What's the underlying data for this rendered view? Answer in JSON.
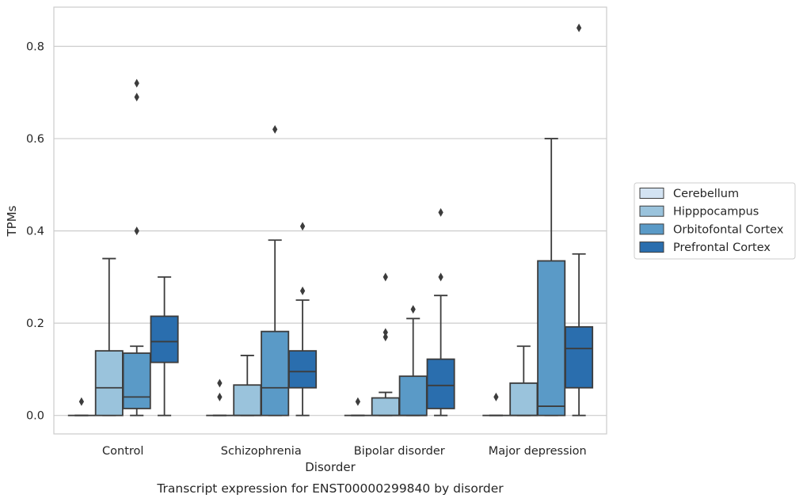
{
  "chart_data": {
    "type": "box",
    "title": "",
    "caption": "Transcript expression for ENST00000299840 by disorder",
    "xlabel": "Disorder",
    "ylabel": "TPMs",
    "ylim": [
      -0.04,
      0.885
    ],
    "yticks": [
      0.0,
      0.2,
      0.4,
      0.6,
      0.8
    ],
    "ytick_labels": [
      "0.0",
      "0.2",
      "0.4",
      "0.6",
      "0.8"
    ],
    "grid": "horizontal",
    "legend_position": "right",
    "categories": [
      "Control",
      "Schizophrenia",
      "Bipolar disorder",
      "Major depression"
    ],
    "series": [
      {
        "name": "Cerebellum",
        "color": "#d3e3f2",
        "boxes": [
          {
            "whislo": 0,
            "q1": 0,
            "med": 0,
            "q3": 0,
            "whishi": 0,
            "fliers": [
              0.03
            ]
          },
          {
            "whislo": 0,
            "q1": 0,
            "med": 0,
            "q3": 0,
            "whishi": 0,
            "fliers": [
              0.04,
              0.07
            ]
          },
          {
            "whislo": 0,
            "q1": 0,
            "med": 0,
            "q3": 0,
            "whishi": 0,
            "fliers": [
              0.03
            ]
          },
          {
            "whislo": 0,
            "q1": 0,
            "med": 0,
            "q3": 0,
            "whishi": 0,
            "fliers": [
              0.04
            ]
          }
        ]
      },
      {
        "name": "Hipppocampus",
        "color": "#9ac3dc",
        "boxes": [
          {
            "whislo": 0,
            "q1": 0,
            "med": 0.06,
            "q3": 0.14,
            "whishi": 0.34,
            "fliers": []
          },
          {
            "whislo": 0,
            "q1": 0,
            "med": 0,
            "q3": 0.066,
            "whishi": 0.13,
            "fliers": []
          },
          {
            "whislo": 0,
            "q1": 0,
            "med": 0,
            "q3": 0.038,
            "whishi": 0.05,
            "fliers": [
              0.17,
              0.18,
              0.3
            ]
          },
          {
            "whislo": 0,
            "q1": 0,
            "med": 0,
            "q3": 0.07,
            "whishi": 0.15,
            "fliers": []
          }
        ]
      },
      {
        "name": "Orbitofontal Cortex",
        "color": "#5a9ac7",
        "boxes": [
          {
            "whislo": 0,
            "q1": 0.015,
            "med": 0.04,
            "q3": 0.135,
            "whishi": 0.15,
            "fliers": [
              0.4,
              0.69,
              0.72
            ]
          },
          {
            "whislo": 0,
            "q1": 0,
            "med": 0.06,
            "q3": 0.182,
            "whishi": 0.38,
            "fliers": [
              0.62
            ]
          },
          {
            "whislo": 0,
            "q1": 0,
            "med": 0,
            "q3": 0.085,
            "whishi": 0.21,
            "fliers": [
              0.23
            ]
          },
          {
            "whislo": 0,
            "q1": 0,
            "med": 0.02,
            "q3": 0.335,
            "whishi": 0.6,
            "fliers": []
          }
        ]
      },
      {
        "name": "Prefrontal Cortex",
        "color": "#2a6eae",
        "boxes": [
          {
            "whislo": 0,
            "q1": 0.115,
            "med": 0.16,
            "q3": 0.215,
            "whishi": 0.3,
            "fliers": []
          },
          {
            "whislo": 0,
            "q1": 0.06,
            "med": 0.095,
            "q3": 0.14,
            "whishi": 0.25,
            "fliers": [
              0.27,
              0.41
            ]
          },
          {
            "whislo": 0,
            "q1": 0.015,
            "med": 0.065,
            "q3": 0.122,
            "whishi": 0.26,
            "fliers": [
              0.3,
              0.44
            ]
          },
          {
            "whislo": 0,
            "q1": 0.06,
            "med": 0.145,
            "q3": 0.192,
            "whishi": 0.35,
            "fliers": [
              0.84
            ]
          }
        ]
      }
    ]
  }
}
